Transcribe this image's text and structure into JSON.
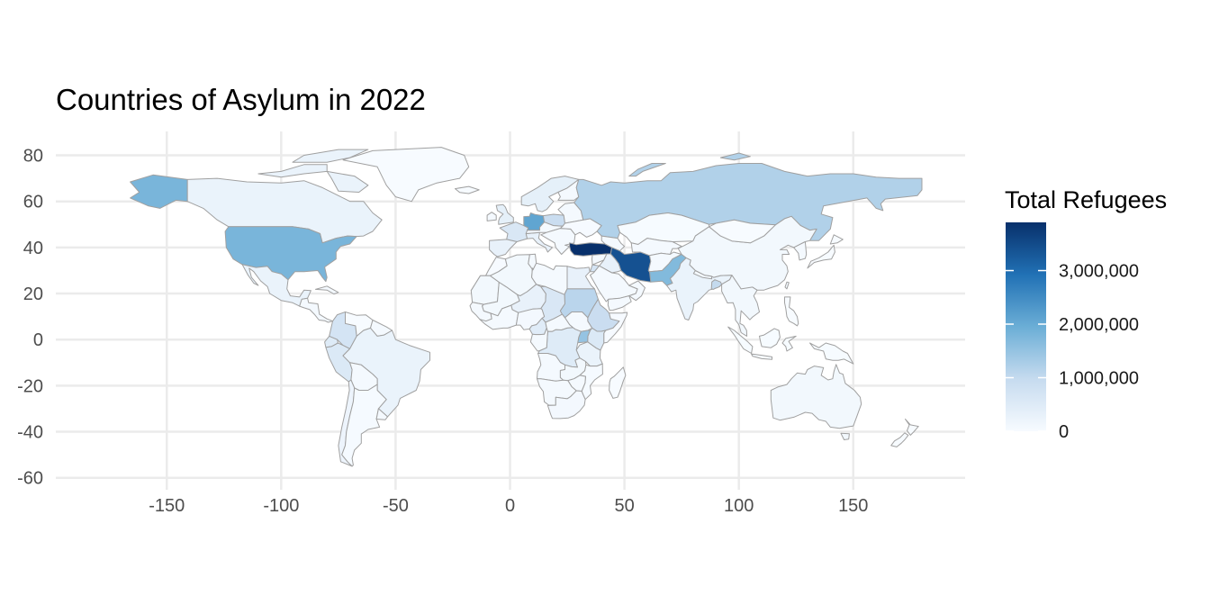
{
  "title": "Countries of Asylum in 2022",
  "chart_data": {
    "type": "choropleth",
    "projection": "equirectangular",
    "x_ticks": [
      -150,
      -100,
      -50,
      0,
      50,
      100,
      150
    ],
    "y_ticks": [
      80,
      60,
      40,
      20,
      0,
      -20,
      -40,
      -60
    ],
    "xlim": [
      -180,
      180
    ],
    "ylim": [
      -58,
      85
    ],
    "grid": true,
    "legend": {
      "title": "Total Refugees",
      "placement": "right",
      "ticks": [
        0,
        1000000,
        2000000,
        3000000
      ],
      "tick_labels": [
        "0",
        "1,000,000",
        "2,000,000",
        "3,000,000"
      ],
      "max": 3900000,
      "color_low": "#f7fbff",
      "color_high": "#08306b"
    },
    "regions": [
      {
        "name": "Turkey",
        "value": 3900000
      },
      {
        "name": "Iran",
        "value": 3400000
      },
      {
        "name": "United States of America",
        "value": 1800000
      },
      {
        "name": "Germany",
        "value": 2100000
      },
      {
        "name": "Pakistan",
        "value": 1700000
      },
      {
        "name": "Uganda",
        "value": 1500000
      },
      {
        "name": "Russia",
        "value": 1200000
      },
      {
        "name": "Sudan",
        "value": 1100000
      },
      {
        "name": "Ethiopia",
        "value": 900000
      },
      {
        "name": "Bangladesh",
        "value": 1000000
      },
      {
        "name": "Colombia",
        "value": 700000
      },
      {
        "name": "Peru",
        "value": 550000
      },
      {
        "name": "Poland",
        "value": 900000
      },
      {
        "name": "Chad",
        "value": 600000
      },
      {
        "name": "DR Congo",
        "value": 500000
      },
      {
        "name": "Kenya",
        "value": 550000
      },
      {
        "name": "Cameroon",
        "value": 450000
      },
      {
        "name": "India",
        "value": 250000
      },
      {
        "name": "Canada",
        "value": 250000
      },
      {
        "name": "Brazil",
        "value": 250000
      },
      {
        "name": "France",
        "value": 600000
      },
      {
        "name": "Mexico",
        "value": 250000
      },
      {
        "name": "Ecuador",
        "value": 500000
      },
      {
        "name": "Chile",
        "value": 200000
      },
      {
        "name": "China",
        "value": 100000
      },
      {
        "name": "Australia",
        "value": 100000
      },
      {
        "name": "Argentina",
        "value": 30000
      },
      {
        "name": "Kazakhstan",
        "value": 10000
      },
      {
        "name": "Mongolia",
        "value": 0
      },
      {
        "name": "Saudi Arabia",
        "value": 50000
      },
      {
        "name": "Algeria",
        "value": 100000
      },
      {
        "name": "Libya",
        "value": 60000
      },
      {
        "name": "Egypt",
        "value": 300000
      },
      {
        "name": "Mali",
        "value": 100000
      },
      {
        "name": "Niger",
        "value": 300000
      },
      {
        "name": "Nigeria",
        "value": 80000
      },
      {
        "name": "Angola",
        "value": 60000
      },
      {
        "name": "Tanzania",
        "value": 250000
      },
      {
        "name": "South Africa",
        "value": 80000
      },
      {
        "name": "Zambia",
        "value": 100000
      },
      {
        "name": "Mozambique",
        "value": 30000
      },
      {
        "name": "Madagascar",
        "value": 0
      },
      {
        "name": "Scandinavia",
        "value": 350000
      },
      {
        "name": "United Kingdom",
        "value": 350000
      },
      {
        "name": "Spain",
        "value": 300000
      },
      {
        "name": "Italy",
        "value": 300000
      },
      {
        "name": "Ukraine",
        "value": 20000
      },
      {
        "name": "Iraq",
        "value": 300000
      },
      {
        "name": "Jordan",
        "value": 700000
      },
      {
        "name": "Afghanistan",
        "value": 50000
      },
      {
        "name": "Southeast Asia",
        "value": 100000
      },
      {
        "name": "Indonesia",
        "value": 10000
      },
      {
        "name": "Japan",
        "value": 2000
      },
      {
        "name": "New Zealand",
        "value": 2000
      },
      {
        "name": "Venezuela",
        "value": 5000
      },
      {
        "name": "Greenland",
        "value": 0
      },
      {
        "name": "Iceland",
        "value": 1000
      },
      {
        "name": "Mauritania",
        "value": 100000
      },
      {
        "name": "Morocco",
        "value": 20000
      },
      {
        "name": "Senegal",
        "value": 20000
      },
      {
        "name": "Yemen",
        "value": 60000
      },
      {
        "name": "Somalia",
        "value": 20000
      },
      {
        "name": "Papua New Guinea",
        "value": 10000
      },
      {
        "name": "Philippines",
        "value": 1000
      }
    ]
  }
}
